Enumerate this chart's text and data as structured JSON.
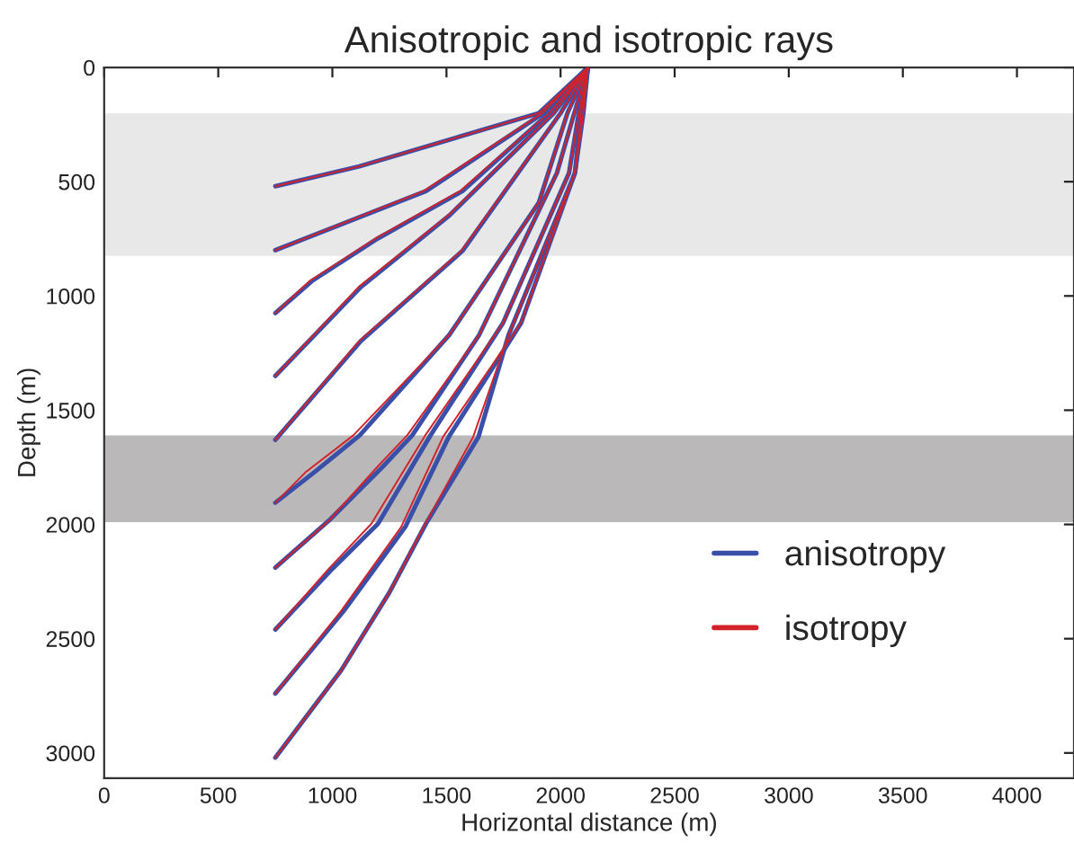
{
  "chart_data": {
    "type": "line",
    "title": "Anisotropic and isotropic rays",
    "xlabel": "Horizontal distance (m)",
    "ylabel": "Depth (m)",
    "xlim": [
      0,
      4250
    ],
    "ylim": [
      3110,
      0
    ],
    "xticks": [
      0,
      500,
      1000,
      1500,
      2000,
      2500,
      3000,
      3500,
      4000
    ],
    "yticks": [
      0,
      500,
      1000,
      1500,
      2000,
      2500,
      3000
    ],
    "grid": false,
    "legend": "bottom right",
    "line_style": "solid",
    "marker": "none",
    "bands": [
      {
        "axis": "y",
        "from": 200,
        "to": 825,
        "color": "#e8e8e8"
      },
      {
        "axis": "y",
        "from": 1610,
        "to": 1990,
        "color": "#bab8b9"
      }
    ],
    "series": [
      {
        "name": "anisotropy",
        "color": "#3a4fa8",
        "x": [
          2120,
          1905,
          1118,
          750
        ],
        "values": [
          0,
          200,
          433,
          520
        ]
      },
      {
        "color": "#3a4fa8",
        "x": [
          2120,
          1925,
          1410,
          750
        ],
        "values": [
          0,
          200,
          541,
          800
        ]
      },
      {
        "color": "#3a4fa8",
        "x": [
          2120,
          1950,
          1570,
          1200,
          910,
          750
        ],
        "values": [
          0,
          200,
          541,
          748,
          935,
          1075
        ]
      },
      {
        "color": "#3a4fa8",
        "x": [
          2120,
          1970,
          1515,
          1125,
          750
        ],
        "values": [
          0,
          200,
          646,
          961,
          1350
        ]
      },
      {
        "color": "#3a4fa8",
        "x": [
          2120,
          2000,
          1570,
          1125,
          750
        ],
        "values": [
          0,
          200,
          803,
          1197,
          1630
        ]
      },
      {
        "color": "#3a4fa8",
        "x": [
          2120,
          2030,
          1905,
          1512,
          1120,
          920,
          750
        ],
        "values": [
          0,
          200,
          591,
          1171,
          1610,
          1772,
          1905
        ]
      },
      {
        "color": "#3a4fa8",
        "x": [
          2120,
          2060,
          1984,
          1643,
          1350,
          1220,
          984,
          750
        ],
        "values": [
          0,
          200,
          462,
          1171,
          1610,
          1748,
          1984,
          2189
        ]
      },
      {
        "color": "#3a4fa8",
        "x": [
          2120,
          2080,
          2037,
          1748,
          1430,
          1200,
          1000,
          750
        ],
        "values": [
          0,
          200,
          462,
          1118,
          1610,
          1997,
          2194,
          2460
        ]
      },
      {
        "color": "#3a4fa8",
        "x": [
          2120,
          2090,
          2063,
          1827,
          1510,
          1320,
          1050,
          750
        ],
        "values": [
          0,
          200,
          462,
          1118,
          1617,
          2010,
          2378,
          2740
        ]
      },
      {
        "color": "#3a4fa8",
        "x": [
          2120,
          2100,
          2063,
          1772,
          1640,
          1410,
          1249,
          1039,
          750
        ],
        "values": [
          0,
          200,
          462,
          1171,
          1617,
          1997,
          2299,
          2638,
          3020
        ]
      },
      {
        "name": "isotropy",
        "color": "#d2232a",
        "x": [
          2120,
          1905,
          1118,
          750
        ],
        "values": [
          0,
          200,
          433,
          520
        ]
      },
      {
        "color": "#d2232a",
        "x": [
          2120,
          1920,
          1400,
          750
        ],
        "values": [
          0,
          200,
          541,
          800
        ]
      },
      {
        "color": "#d2232a",
        "x": [
          2120,
          1950,
          1560,
          1190,
          900,
          750
        ],
        "values": [
          0,
          200,
          541,
          748,
          935,
          1075
        ]
      },
      {
        "color": "#d2232a",
        "x": [
          2120,
          1970,
          1510,
          1115,
          750
        ],
        "values": [
          0,
          200,
          646,
          961,
          1350
        ]
      },
      {
        "color": "#d2232a",
        "x": [
          2120,
          2000,
          1565,
          1118,
          750
        ],
        "values": [
          0,
          200,
          803,
          1197,
          1630
        ]
      },
      {
        "color": "#d2232a",
        "x": [
          2120,
          2030,
          1905,
          1512,
          1092,
          882,
          750
        ],
        "values": [
          0,
          200,
          591,
          1171,
          1610,
          1772,
          1905
        ]
      },
      {
        "color": "#d2232a",
        "x": [
          2120,
          2060,
          1984,
          1643,
          1328,
          1197,
          984,
          750
        ],
        "values": [
          0,
          200,
          462,
          1171,
          1610,
          1748,
          1984,
          2189
        ]
      },
      {
        "color": "#d2232a",
        "x": [
          2120,
          2080,
          2037,
          1748,
          1407,
          1171,
          984,
          750
        ],
        "values": [
          0,
          200,
          462,
          1118,
          1610,
          1997,
          2194,
          2460
        ]
      },
      {
        "color": "#d2232a",
        "x": [
          2120,
          2090,
          2063,
          1827,
          1485,
          1302,
          1039,
          750
        ],
        "values": [
          0,
          200,
          462,
          1118,
          1617,
          2010,
          2378,
          2740
        ]
      },
      {
        "color": "#d2232a",
        "x": [
          2120,
          2100,
          2063,
          1772,
          1617,
          1407,
          1249,
          1039,
          750
        ],
        "values": [
          0,
          200,
          462,
          1171,
          1617,
          1997,
          2299,
          2638,
          3020
        ]
      }
    ]
  }
}
